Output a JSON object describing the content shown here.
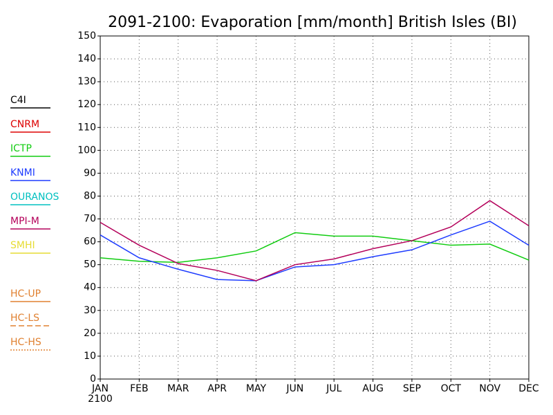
{
  "chart_data": {
    "type": "line",
    "title": "2091-2100: Evaporation [mm/month] British Isles (BI)",
    "categories": [
      "JAN",
      "FEB",
      "MAR",
      "APR",
      "MAY",
      "JUN",
      "JUL",
      "AUG",
      "SEP",
      "OCT",
      "NOV",
      "DEC"
    ],
    "x_sublabel": "2100",
    "ylim": [
      0,
      150
    ],
    "yticks": [
      0,
      10,
      20,
      30,
      40,
      50,
      60,
      70,
      80,
      90,
      100,
      110,
      120,
      130,
      140,
      150
    ],
    "grid": true,
    "legend": "left",
    "series": [
      {
        "name": "C4I",
        "color": "#000000",
        "dash": "solid",
        "values": [
          null,
          null,
          null,
          null,
          null,
          null,
          null,
          null,
          null,
          null,
          null,
          null
        ]
      },
      {
        "name": "CNRM",
        "color": "#dd0000",
        "dash": "solid",
        "values": [
          null,
          null,
          null,
          null,
          null,
          null,
          null,
          null,
          null,
          null,
          null,
          null
        ]
      },
      {
        "name": "ICTP",
        "color": "#10cc10",
        "dash": "solid",
        "values": [
          53,
          51.5,
          51,
          53,
          56,
          64,
          62.5,
          62.5,
          60.5,
          58.5,
          59,
          52
        ]
      },
      {
        "name": "KNMI",
        "color": "#1e3cff",
        "dash": "solid",
        "values": [
          63,
          53,
          48,
          43.5,
          43,
          49,
          50,
          53.5,
          56.5,
          63,
          69,
          58.5
        ]
      },
      {
        "name": "OURANOS",
        "color": "#00c0c0",
        "dash": "solid",
        "values": [
          null,
          null,
          null,
          null,
          null,
          null,
          null,
          null,
          null,
          null,
          null,
          null
        ]
      },
      {
        "name": "MPI-M",
        "color": "#b4005a",
        "dash": "solid",
        "values": [
          68.5,
          58.5,
          50.5,
          47.5,
          43,
          50,
          52.5,
          57,
          60.5,
          66.5,
          78,
          67
        ]
      },
      {
        "name": "SMHI",
        "color": "#e6dc32",
        "dash": "solid",
        "values": [
          null,
          null,
          null,
          null,
          null,
          null,
          null,
          null,
          null,
          null,
          null,
          null
        ]
      },
      {
        "name": "HC-UP",
        "color": "#e08030",
        "dash": "solid",
        "values": [
          null,
          null,
          null,
          null,
          null,
          null,
          null,
          null,
          null,
          null,
          null,
          null
        ]
      },
      {
        "name": "HC-LS",
        "color": "#e08030",
        "dash": "dashed",
        "values": [
          null,
          null,
          null,
          null,
          null,
          null,
          null,
          null,
          null,
          null,
          null,
          null
        ]
      },
      {
        "name": "HC-HS",
        "color": "#e08030",
        "dash": "dotted",
        "values": [
          null,
          null,
          null,
          null,
          null,
          null,
          null,
          null,
          null,
          null,
          null,
          null
        ]
      }
    ]
  }
}
